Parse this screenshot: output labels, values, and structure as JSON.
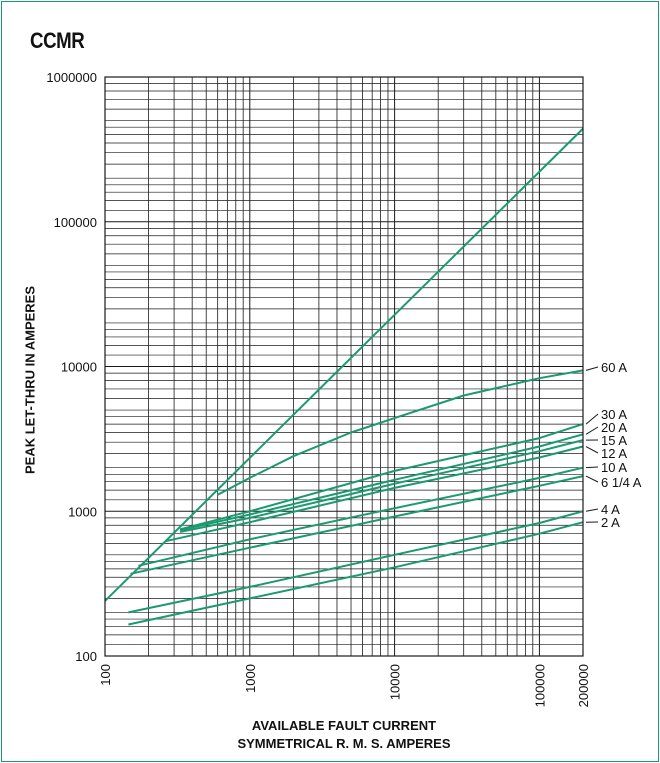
{
  "title": "CCMR",
  "ylabel": "PEAK LET-THRU IN AMPERES",
  "xlabel_line1": "AVAILABLE FAULT CURRENT",
  "xlabel_line2": "SYMMETRICAL  R. M. S.  AMPERES",
  "colors": {
    "curve": "#1a9a6e",
    "grid": "#1a1a1a",
    "frame": "#1a9a6e",
    "text": "#111111"
  },
  "chart_data": {
    "type": "line",
    "x_scale": "log",
    "y_scale": "log",
    "xlim": [
      100,
      200000
    ],
    "ylim": [
      100,
      1000000
    ],
    "grid": true,
    "x_ticks": [
      "100",
      "1000",
      "10000",
      "100000",
      "200000"
    ],
    "y_ticks": [
      "100",
      "1000",
      "10000",
      "100000",
      "1000000"
    ],
    "reference_line": {
      "name": "",
      "points": [
        [
          100,
          240
        ],
        [
          200000,
          440000
        ]
      ]
    },
    "series": [
      {
        "name": "60 A",
        "points": [
          [
            600,
            1300
          ],
          [
            1000,
            1700
          ],
          [
            2000,
            2400
          ],
          [
            5000,
            3500
          ],
          [
            10000,
            4400
          ],
          [
            30000,
            6300
          ],
          [
            100000,
            8300
          ],
          [
            200000,
            9400
          ]
        ]
      },
      {
        "name": "30 A",
        "points": [
          [
            330,
            750
          ],
          [
            1000,
            1000
          ],
          [
            10000,
            1900
          ],
          [
            100000,
            3200
          ],
          [
            200000,
            4000
          ]
        ]
      },
      {
        "name": "20 A",
        "points": [
          [
            330,
            740
          ],
          [
            1000,
            950
          ],
          [
            10000,
            1650
          ],
          [
            100000,
            2800
          ],
          [
            200000,
            3400
          ]
        ]
      },
      {
        "name": "15 A",
        "points": [
          [
            330,
            720
          ],
          [
            1000,
            900
          ],
          [
            10000,
            1550
          ],
          [
            100000,
            2600
          ],
          [
            200000,
            3100
          ]
        ]
      },
      {
        "name": "12 A",
        "points": [
          [
            260,
            620
          ],
          [
            1000,
            840
          ],
          [
            10000,
            1450
          ],
          [
            100000,
            2350
          ],
          [
            200000,
            2800
          ]
        ]
      },
      {
        "name": "10 A",
        "points": [
          [
            170,
            420
          ],
          [
            1000,
            640
          ],
          [
            10000,
            1050
          ],
          [
            100000,
            1700
          ],
          [
            200000,
            2000
          ]
        ]
      },
      {
        "name": "6 1/4 A",
        "points": [
          [
            150,
            370
          ],
          [
            1000,
            560
          ],
          [
            10000,
            920
          ],
          [
            100000,
            1500
          ],
          [
            200000,
            1750
          ]
        ]
      },
      {
        "name": "4 A",
        "points": [
          [
            145,
            200
          ],
          [
            1000,
            300
          ],
          [
            10000,
            500
          ],
          [
            100000,
            830
          ],
          [
            200000,
            1000
          ]
        ]
      },
      {
        "name": "2 A",
        "points": [
          [
            145,
            165
          ],
          [
            1000,
            250
          ],
          [
            10000,
            410
          ],
          [
            100000,
            700
          ],
          [
            200000,
            840
          ]
        ]
      }
    ]
  }
}
